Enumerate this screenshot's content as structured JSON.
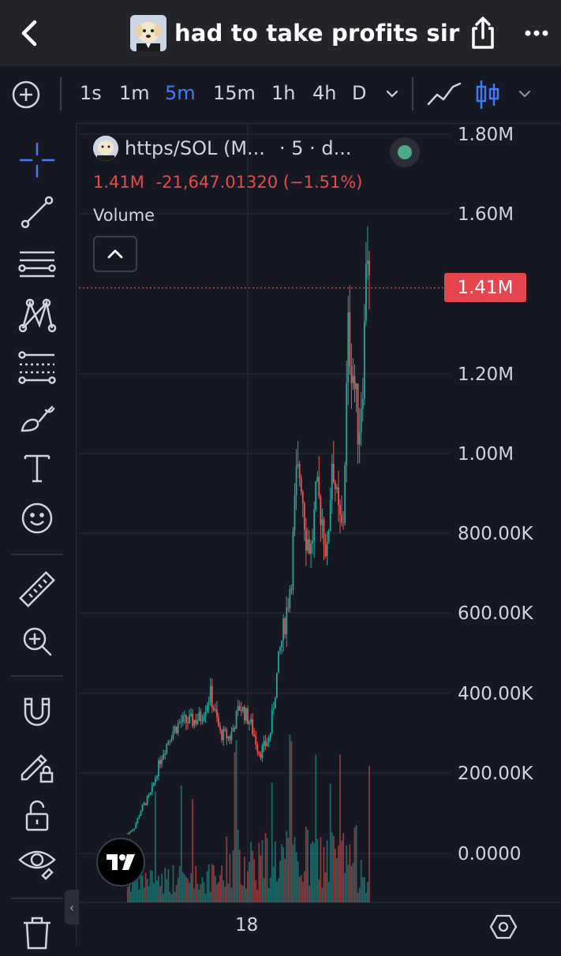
{
  "header": {
    "title": "had to take profits sir",
    "icons": {
      "back": "chevron-left-icon",
      "share": "share-icon",
      "more": "more-icon"
    }
  },
  "toolbar": {
    "intervals": [
      "1s",
      "1m",
      "5m",
      "15m",
      "1h",
      "4h",
      "D"
    ],
    "active_interval": "5m",
    "accent_color": "#3f7bf5"
  },
  "left_tools": [
    "crosshair-icon",
    "trend-line-icon",
    "horizontal-lines-icon",
    "pattern-icon",
    "fib-icon",
    "brush-icon",
    "text-icon",
    "emoji-icon",
    "ruler-icon",
    "zoom-icon",
    "magnet-icon",
    "lock-drawing-icon",
    "unlock-icon",
    "eye-icon",
    "trash-icon"
  ],
  "legend": {
    "symbol": "https/SOL (M...",
    "interval_part": "· 5 · d...",
    "last": "1.41M",
    "change": "-21,647.01320 (−1.51%)",
    "volume_label": "Volume",
    "status_color": "#4fa88a"
  },
  "price_axis": {
    "ticks": [
      "1.80M",
      "1.60M",
      "1.20M",
      "1.00M",
      "800.00K",
      "600.00K",
      "400.00K",
      "200.00K",
      "0.0000"
    ],
    "current_label": "1.41M"
  },
  "time_axis": {
    "label": "18"
  },
  "colors": {
    "up": "#26a69a",
    "down": "#ef5350",
    "current": "#e5464e"
  }
}
